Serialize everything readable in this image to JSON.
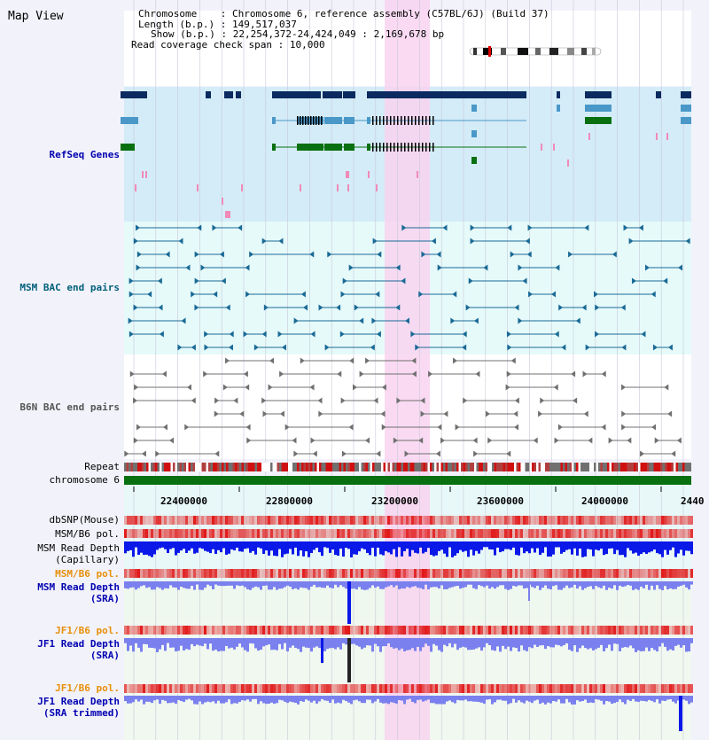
{
  "view_title": "Map View",
  "info": {
    "chromosome_label": "Chromosome",
    "chromosome_value": "Chromosome 6, reference assembly (C57BL/6J) (Build 37)",
    "length_label": "Length (b.p.)",
    "length_value": "149,517,037",
    "show_label": "Show (b.p.)",
    "show_value": "22,254,372-24,424,049 : 2,169,678 bp",
    "coverage_label": "Read coverage check span",
    "coverage_value": "10,000"
  },
  "tracks": {
    "refseq": "RefSeq Genes",
    "msm_bac": "MSM BAC end pairs",
    "b6n_bac": "B6N BAC end pairs",
    "repeat": "Repeat",
    "chromosome": "chromosome 6",
    "dbsnp": "dbSNP(Mouse)",
    "msm_b6_pol": "MSM/B6 pol.",
    "msm_depth_cap_1": "MSM Read Depth",
    "msm_depth_cap_2": "(Capillary)",
    "msm_b6_pol_2": "MSM/B6 pol.",
    "msm_depth_sra_1": "MSM Read Depth",
    "msm_depth_sra_2": "(SRA)",
    "jf1_b6_pol": "JF1/B6 pol.",
    "jf1_depth_sra_1": "JF1 Read Depth",
    "jf1_depth_sra_2": "(SRA)",
    "jf1_b6_pol_2": "JF1/B6 pol.",
    "jf1_depth_trim_1": "JF1 Read Depth",
    "jf1_depth_trim_2": "(SRA trimmed)"
  },
  "axis_ticks": [
    "22400000",
    "22800000",
    "23200000",
    "23600000",
    "24000000",
    "2440"
  ],
  "colors": {
    "refseq_bg": "#d4ecf8",
    "bac_bg": "#e6fafa",
    "highlight": "#f8d4f0",
    "navy": "#0a2a60",
    "gene_blue": "#4a98c8",
    "gene_green": "#087010",
    "teal_bac": "#1a6a96",
    "gray_bac": "#707070",
    "depth_blue": "#0a18e8",
    "depth_violet": "#7a80ee"
  }
}
